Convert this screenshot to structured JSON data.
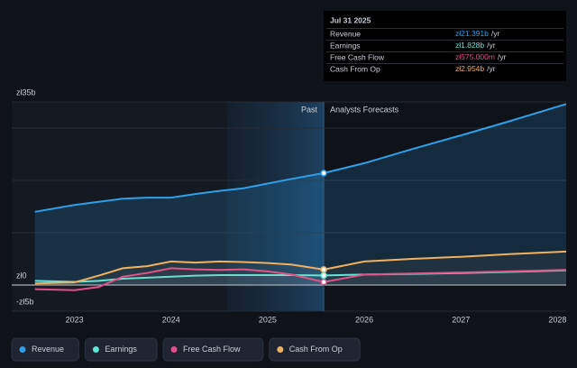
{
  "chart_data": {
    "type": "line",
    "x": [
      2022.59,
      2023,
      2023.25,
      2023.5,
      2023.75,
      2024,
      2024.25,
      2024.5,
      2024.75,
      2025,
      2025.25,
      2025.58,
      2026,
      2026.5,
      2027,
      2027.5,
      2028.09
    ],
    "series": [
      {
        "name": "Revenue",
        "color": "#2f9fe8",
        "values": [
          14.0,
          15.3,
          15.9,
          16.5,
          16.7,
          16.7,
          17.4,
          18.0,
          18.5,
          19.4,
          20.3,
          21.391,
          23.3,
          26.0,
          28.6,
          31.3,
          34.6
        ]
      },
      {
        "name": "Earnings",
        "color": "#5ee8d8",
        "values": [
          0.8,
          0.6,
          0.8,
          1.2,
          1.4,
          1.6,
          1.8,
          1.9,
          1.9,
          1.9,
          1.9,
          1.828,
          2.0,
          2.1,
          2.3,
          2.5,
          2.8
        ]
      },
      {
        "name": "Free Cash Flow",
        "color": "#e0508a",
        "values": [
          -0.8,
          -1.0,
          -0.4,
          1.6,
          2.3,
          3.2,
          3.0,
          2.9,
          3.0,
          2.6,
          2.0,
          0.575,
          2.0,
          2.2,
          2.4,
          2.6,
          2.9
        ]
      },
      {
        "name": "Cash From Op",
        "color": "#f0b060",
        "values": [
          0.3,
          0.5,
          1.8,
          3.2,
          3.6,
          4.5,
          4.3,
          4.5,
          4.4,
          4.2,
          3.9,
          2.954,
          4.5,
          5.0,
          5.4,
          5.9,
          6.4
        ]
      }
    ],
    "xlim": [
      2022.35,
      2028.09
    ],
    "xticks": [
      2023,
      2024,
      2025,
      2026,
      2027,
      2028
    ],
    "ylim": [
      -5,
      35
    ],
    "yticks": [
      {
        "value": 35,
        "label": "zł35b"
      },
      {
        "value": 0,
        "label": "zł0"
      },
      {
        "value": -5,
        "label": "-zł5b"
      }
    ],
    "gridlines": [
      10,
      20,
      30
    ],
    "forecast_start": 2025.58,
    "past_label": "Past",
    "forecast_label": "Analysts Forecasts",
    "tooltip": {
      "date": "Jul 31 2025",
      "rows": [
        {
          "label": "Revenue",
          "value": "zł21.391b",
          "unit": "/yr"
        },
        {
          "label": "Earnings",
          "value": "zł1.828b",
          "unit": "/yr"
        },
        {
          "label": "Free Cash Flow",
          "value": "zł575.000m",
          "unit": "/yr"
        },
        {
          "label": "Cash From Op",
          "value": "zł2.954b",
          "unit": "/yr"
        }
      ]
    }
  }
}
